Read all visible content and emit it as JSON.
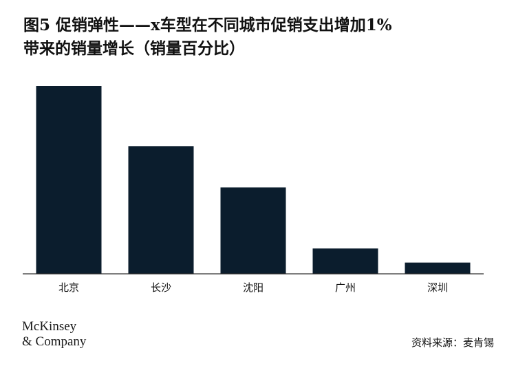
{
  "title_line1": "图5 促销弹性——x车型在不同城市促销支出增加1%",
  "title_line2": "带来的销量增长（销量百分比）",
  "chart_data": {
    "type": "bar",
    "categories": [
      "北京",
      "长沙",
      "沈阳",
      "广州",
      "深圳"
    ],
    "values": [
      100,
      68,
      46,
      13.5,
      6
    ],
    "title": "",
    "xlabel": "",
    "ylabel": "",
    "ylim": [
      0,
      100
    ],
    "grid": false,
    "bar_color": "#0b1d2d",
    "axis_color": "#333333"
  },
  "logo": {
    "line1": "McKinsey",
    "line2": "& Company"
  },
  "source": "资料来源：麦肯锡"
}
